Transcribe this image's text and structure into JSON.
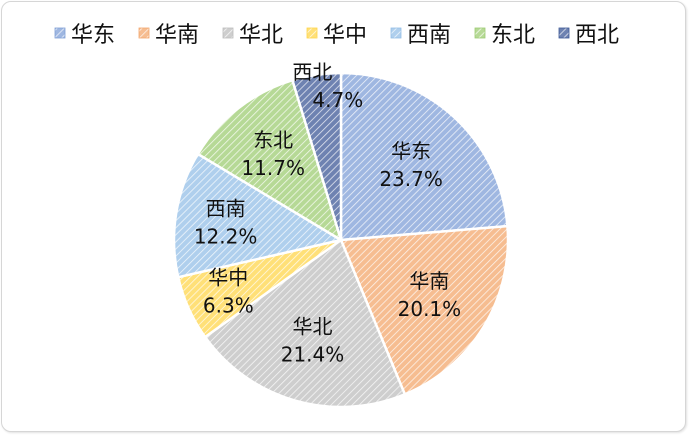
{
  "chart_data": {
    "type": "pie",
    "legend_position": "top",
    "categories": [
      "华东",
      "华南",
      "华北",
      "华中",
      "西南",
      "东北",
      "西北"
    ],
    "values": [
      23.7,
      20.1,
      21.4,
      6.3,
      12.2,
      11.7,
      4.7
    ],
    "value_labels": [
      "23.7%",
      "20.1%",
      "21.4%",
      "6.3%",
      "12.2%",
      "11.7%",
      "4.7%"
    ],
    "colors": [
      "#7f9fd6",
      "#f3a66c",
      "#bdbdbd",
      "#ffd54a",
      "#94bfe7",
      "#9dcc73",
      "#3d5896"
    ]
  }
}
